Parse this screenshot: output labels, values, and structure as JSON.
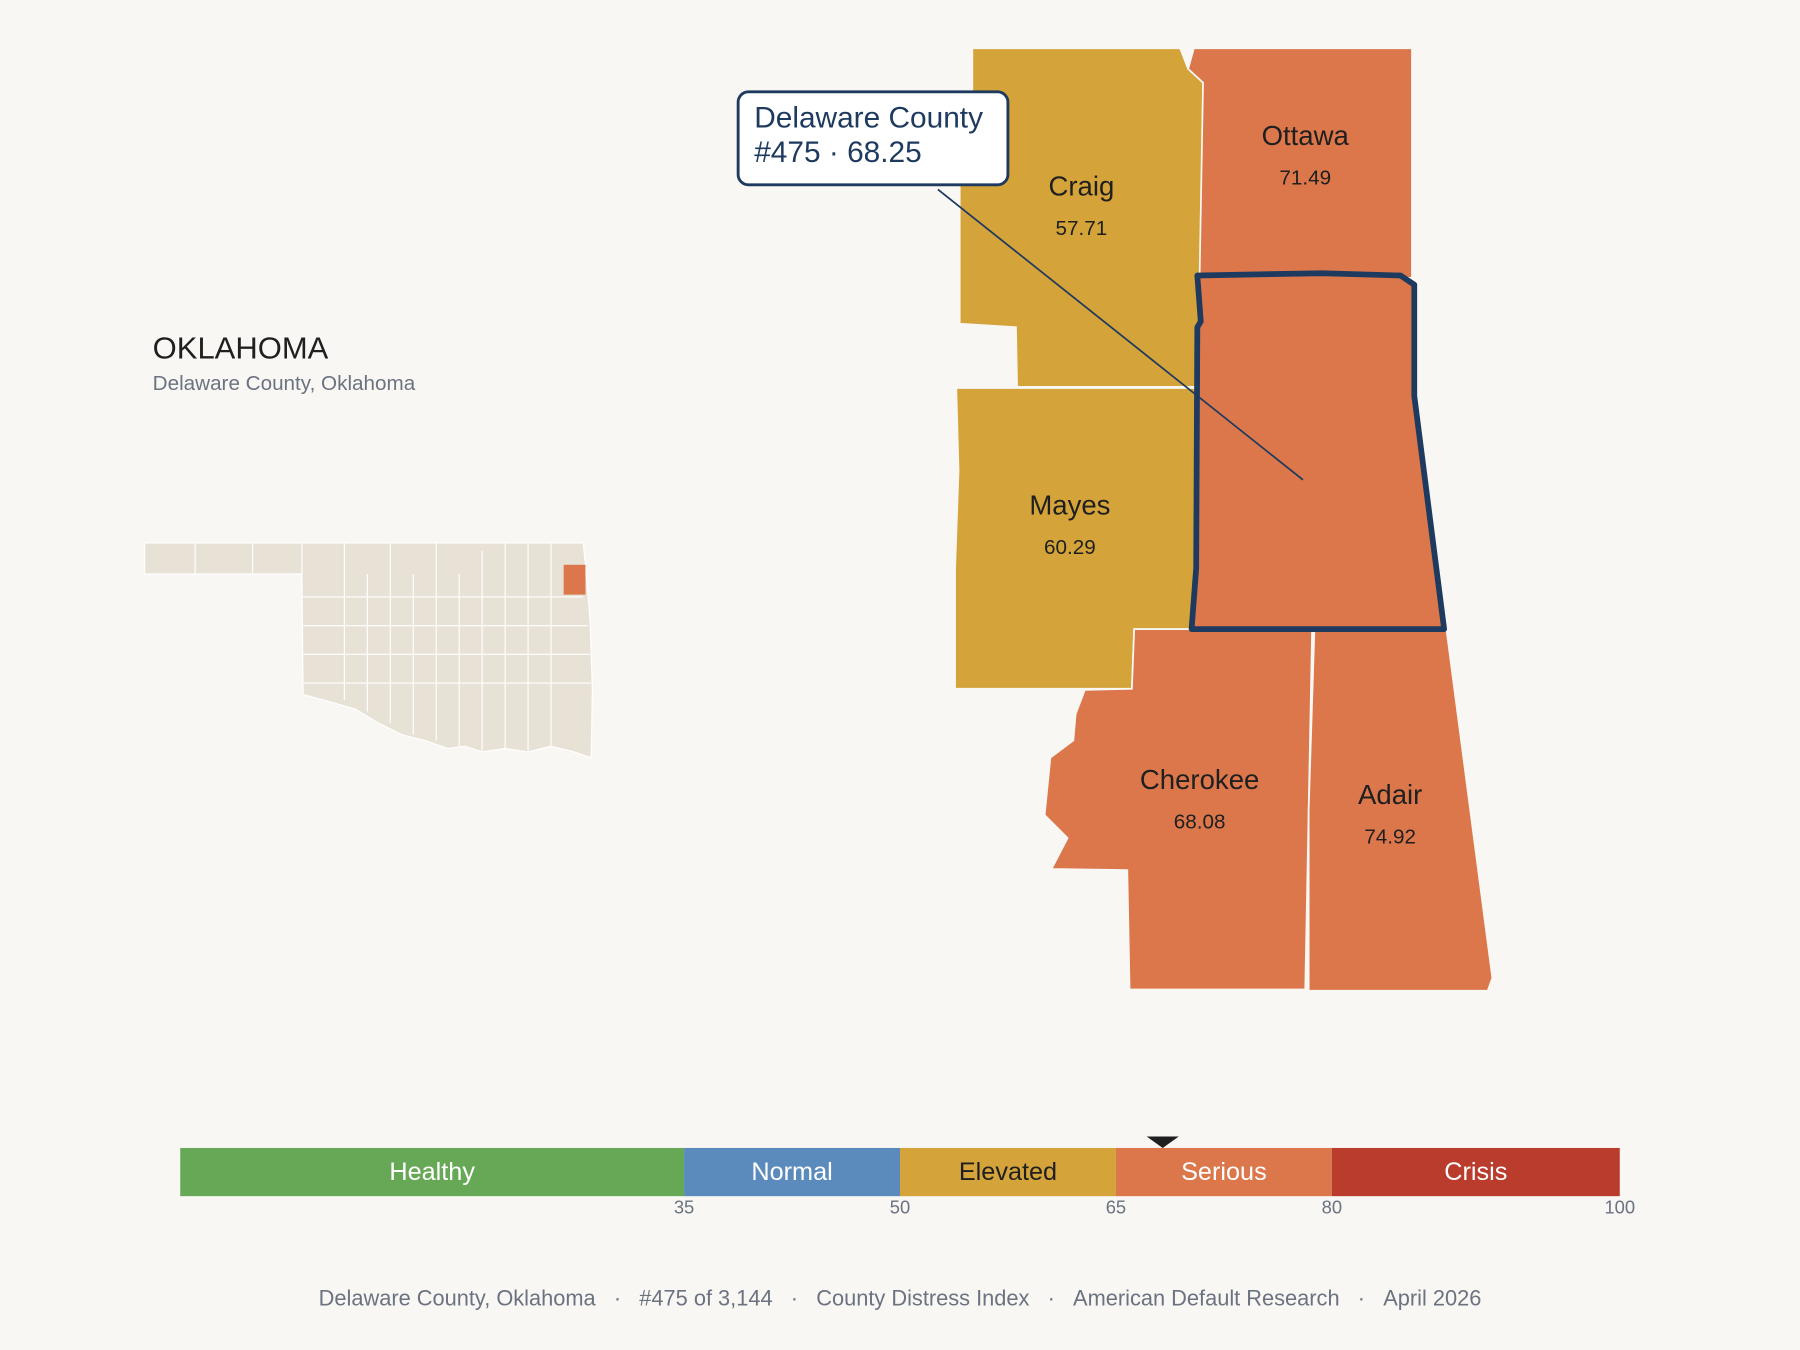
{
  "header": {
    "title": "OKLAHOMA",
    "subtitle": "Delaware County, Oklahoma"
  },
  "callout": {
    "name": "Delaware County",
    "rank": "#475",
    "separator": "·",
    "score": 68.25
  },
  "counties": [
    {
      "name": "Craig",
      "score": 57.71
    },
    {
      "name": "Ottawa",
      "score": 71.49
    },
    {
      "name": "Mayes",
      "score": 60.29
    },
    {
      "name": "Cherokee",
      "score": 68.08
    },
    {
      "name": "Adair",
      "score": 74.92
    }
  ],
  "scale": {
    "bands": [
      {
        "label": "Healthy",
        "color": "#67a857"
      },
      {
        "label": "Normal",
        "color": "#5b8bbd"
      },
      {
        "label": "Elevated",
        "color": "#d4a43a"
      },
      {
        "label": "Serious",
        "color": "#db774a"
      },
      {
        "label": "Crisis",
        "color": "#b93c2c"
      }
    ],
    "ticks": [
      35,
      50,
      65,
      80,
      100
    ]
  },
  "footer": {
    "items": [
      "Delaware County, Oklahoma",
      "#475 of 3,144",
      "County Distress Index",
      "American Default Research",
      "April 2026"
    ],
    "separator": "·"
  }
}
